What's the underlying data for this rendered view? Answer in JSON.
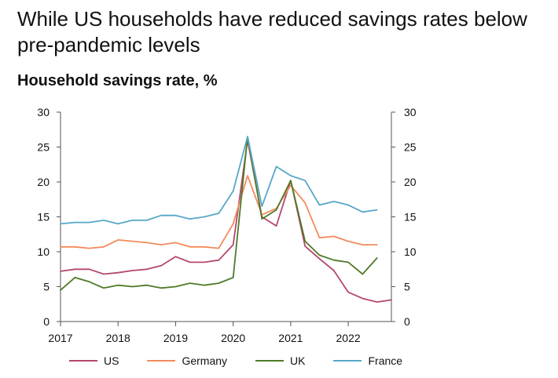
{
  "headline": "While US households have reduced savings rates below pre-pandemic levels",
  "chart_data": {
    "type": "line",
    "title": "Household savings rate, %",
    "xlabel": "",
    "ylabel": "",
    "ylim": [
      0,
      30
    ],
    "xlim": [
      2017,
      2022.75
    ],
    "yticks": [
      "0",
      "5",
      "10",
      "15",
      "20",
      "25",
      "30"
    ],
    "yticks_right": [
      "0",
      "5",
      "10",
      "15",
      "20",
      "25",
      "30"
    ],
    "xticks": [
      "2017",
      "2018",
      "2019",
      "2020",
      "2021",
      "2022"
    ],
    "grid": false,
    "legend_position": "bottom",
    "series": [
      {
        "name": "US",
        "color": "#b5476b",
        "x": [
          2017.0,
          2017.25,
          2017.5,
          2017.75,
          2018.0,
          2018.25,
          2018.5,
          2018.75,
          2019.0,
          2019.25,
          2019.5,
          2019.75,
          2020.0,
          2020.25,
          2020.5,
          2020.75,
          2021.0,
          2021.25,
          2021.5,
          2021.75,
          2022.0,
          2022.25,
          2022.5,
          2022.75
        ],
        "values": [
          7.2,
          7.5,
          7.5,
          6.8,
          7.0,
          7.3,
          7.5,
          8.0,
          9.3,
          8.5,
          8.5,
          8.8,
          11.0,
          26.0,
          15.0,
          13.7,
          20.2,
          10.8,
          9.0,
          7.3,
          4.2,
          3.3,
          2.8,
          3.1
        ]
      },
      {
        "name": "Germany",
        "color": "#f28b5c",
        "x": [
          2017.0,
          2017.25,
          2017.5,
          2017.75,
          2018.0,
          2018.25,
          2018.5,
          2018.75,
          2019.0,
          2019.25,
          2019.5,
          2019.75,
          2020.0,
          2020.25,
          2020.5,
          2020.75,
          2021.0,
          2021.25,
          2021.5,
          2021.75,
          2022.0,
          2022.25,
          2022.5
        ],
        "values": [
          10.7,
          10.7,
          10.5,
          10.7,
          11.7,
          11.5,
          11.3,
          11.0,
          11.3,
          10.7,
          10.7,
          10.5,
          14.0,
          20.9,
          15.3,
          16.2,
          19.5,
          17.0,
          12.0,
          12.2,
          11.5,
          11.0,
          11.0
        ]
      },
      {
        "name": "UK",
        "color": "#4f7a28",
        "x": [
          2017.0,
          2017.25,
          2017.5,
          2017.75,
          2018.0,
          2018.25,
          2018.5,
          2018.75,
          2019.0,
          2019.25,
          2019.5,
          2019.75,
          2020.0,
          2020.25,
          2020.5,
          2020.75,
          2021.0,
          2021.25,
          2021.5,
          2021.75,
          2022.0,
          2022.25,
          2022.5
        ],
        "values": [
          4.5,
          6.3,
          5.7,
          4.8,
          5.2,
          5.0,
          5.2,
          4.8,
          5.0,
          5.5,
          5.2,
          5.5,
          6.3,
          26.5,
          14.7,
          16.0,
          20.2,
          11.5,
          9.5,
          8.8,
          8.5,
          6.8,
          9.1
        ]
      },
      {
        "name": "France",
        "color": "#56a8c8",
        "x": [
          2017.0,
          2017.25,
          2017.5,
          2017.75,
          2018.0,
          2018.25,
          2018.5,
          2018.75,
          2019.0,
          2019.25,
          2019.5,
          2019.75,
          2020.0,
          2020.25,
          2020.5,
          2020.75,
          2021.0,
          2021.25,
          2021.5,
          2021.75,
          2022.0,
          2022.25,
          2022.5
        ],
        "values": [
          14.0,
          14.2,
          14.2,
          14.5,
          14.0,
          14.5,
          14.5,
          15.2,
          15.2,
          14.7,
          15.0,
          15.5,
          18.7,
          26.5,
          16.5,
          22.2,
          20.9,
          20.2,
          16.7,
          17.2,
          16.7,
          15.7,
          16.0
        ]
      }
    ]
  }
}
